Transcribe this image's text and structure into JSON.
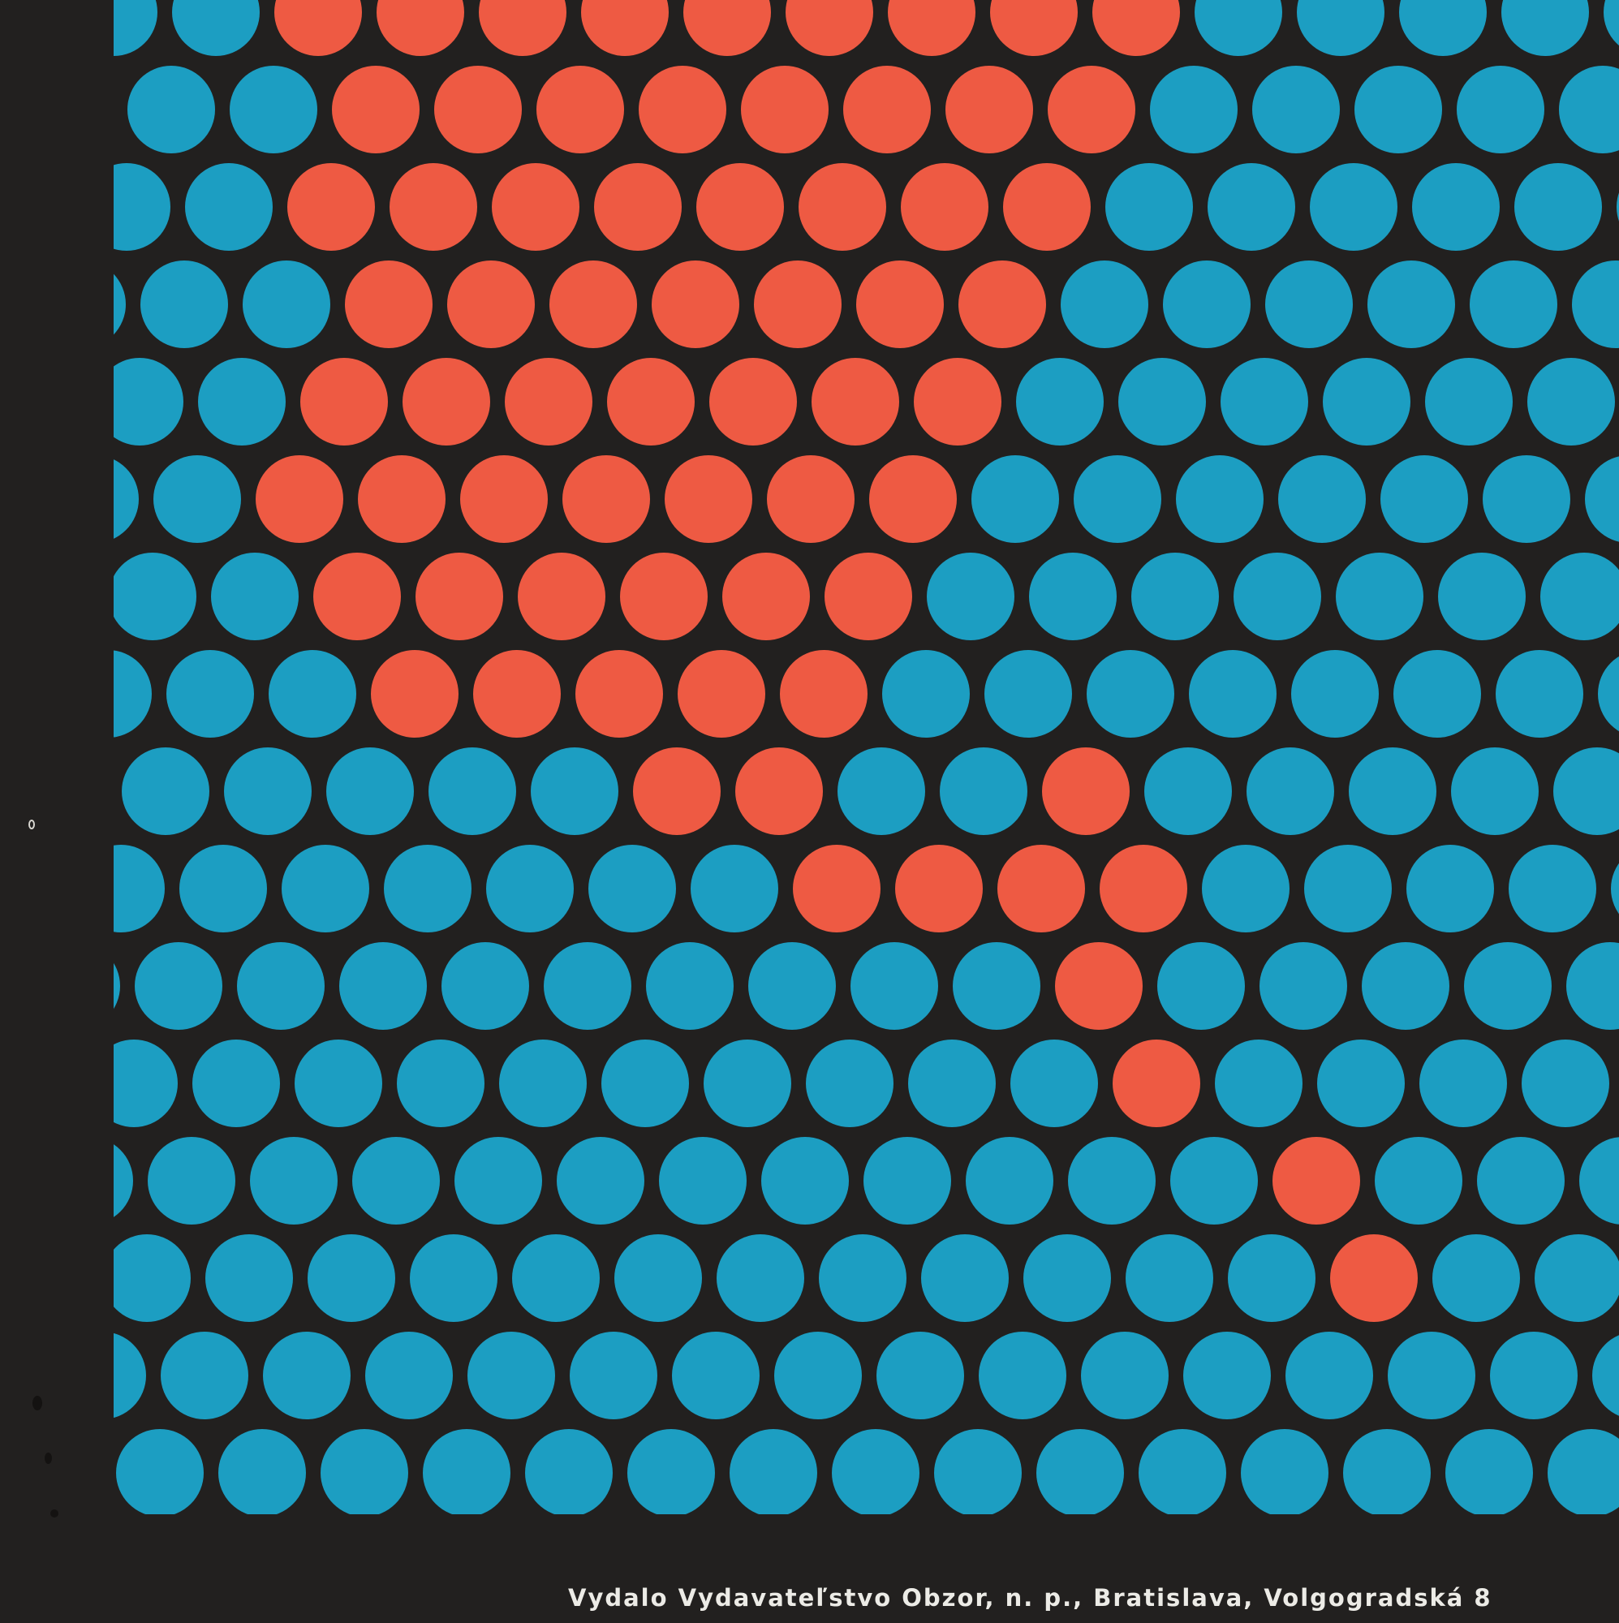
{
  "poster": {
    "imprint_text": "Vydalo Vydavateľstvo Obzor, n. p., Bratislava, Volgogradská 8"
  },
  "colors": {
    "background": "#22201f",
    "dot_blue": "#1c9ec2",
    "dot_red": "#ee5a43",
    "imprint_text": "#ecebe6"
  },
  "motif": {
    "pattern": "halftone dot grid",
    "dot_colors": [
      "blue",
      "red"
    ],
    "highlighted_shape": "red diagonal band of dots on blue field"
  }
}
